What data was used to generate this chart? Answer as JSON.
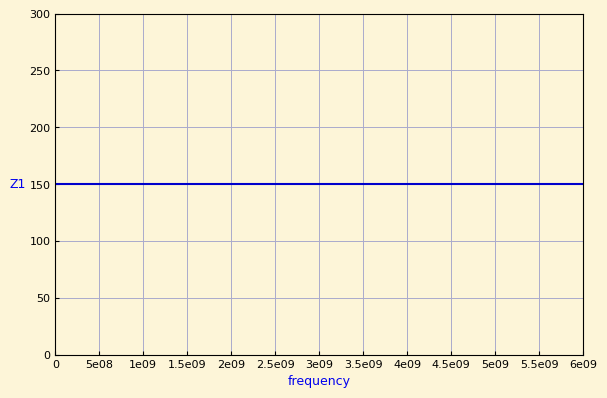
{
  "x_start": 0,
  "x_end": 6000000000.0,
  "y_value": 150,
  "y_min": 0,
  "y_max": 300,
  "xlabel": "frequency",
  "ylabel": "Z1",
  "line_color": "#0000cc",
  "background_color": "#fdf5d8",
  "axes_background_color": "#fdf5d8",
  "grid_color": "#aaaacc",
  "tick_label_color": "#000000",
  "axis_label_color": "#0000ee",
  "spine_color": "#000000",
  "yticks": [
    0,
    50,
    100,
    150,
    200,
    250,
    300
  ],
  "xticks": [
    0,
    500000000.0,
    1000000000.0,
    1500000000.0,
    2000000000.0,
    2500000000.0,
    3000000000.0,
    3500000000.0,
    4000000000.0,
    4500000000.0,
    5000000000.0,
    5500000000.0,
    6000000000.0
  ],
  "xtick_labels": [
    "0",
    "5e08",
    "1e09",
    "1.5e09",
    "2e09",
    "2.5e09",
    "3e09",
    "3.5e09",
    "4e09",
    "4.5e09",
    "5e09",
    "5.5e09",
    "6e09"
  ],
  "line_width": 1.5,
  "tick_fontsize": 8,
  "label_fontsize": 9
}
